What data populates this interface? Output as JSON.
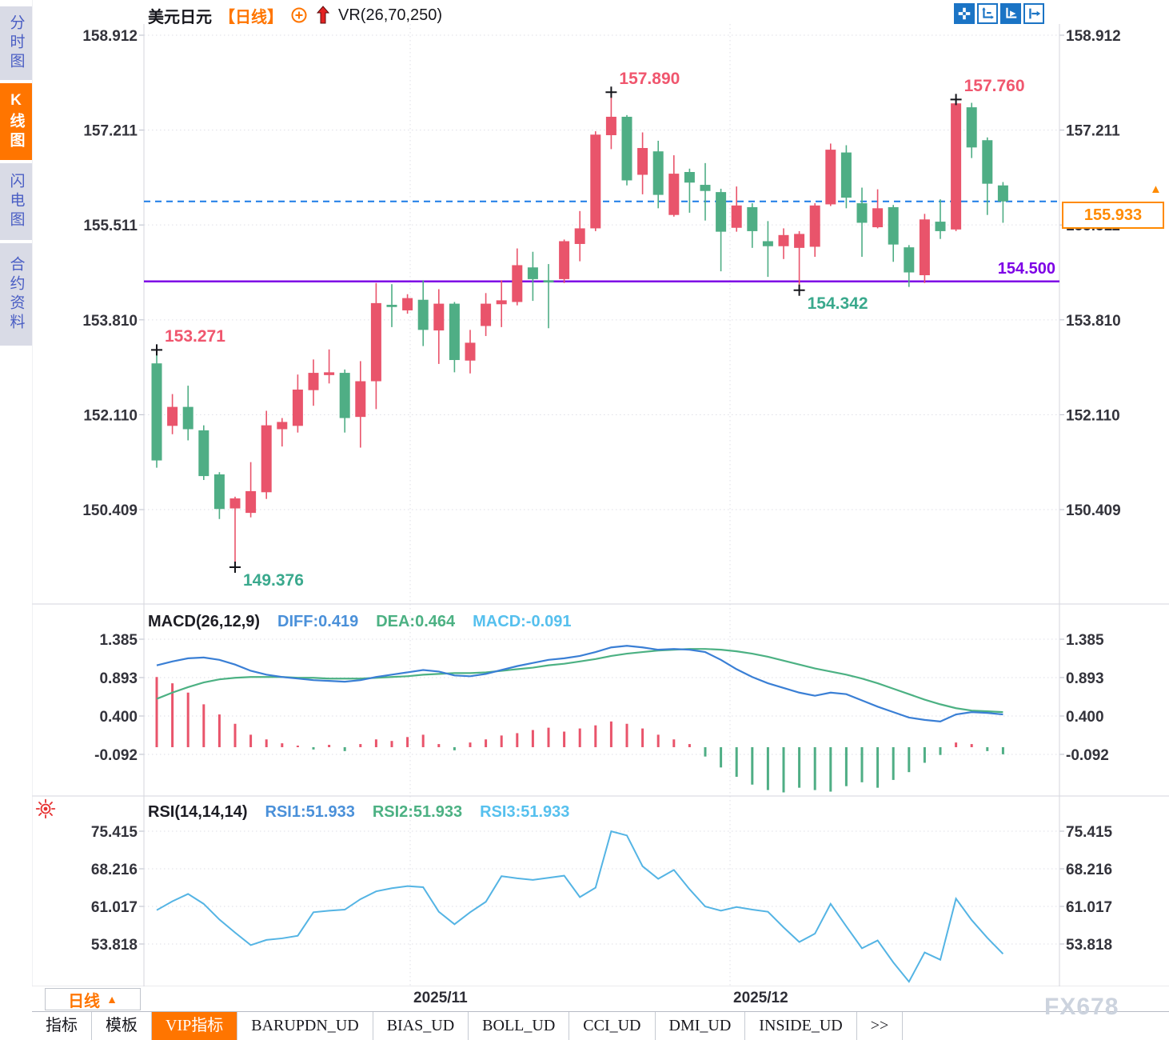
{
  "header": {
    "symbol": "美元日元",
    "period": "【日线】",
    "overlay_indicator": "VR(26,70,250)"
  },
  "sidebar": {
    "items": [
      {
        "label": "分时图",
        "key": "time-chart",
        "active": false
      },
      {
        "label": "K线图",
        "key": "kline-chart",
        "active": true
      },
      {
        "label": "闪电图",
        "key": "flash-chart",
        "active": false
      },
      {
        "label": "合约资料",
        "key": "contract-info",
        "active": false
      }
    ]
  },
  "toolbar": {
    "buttons": [
      {
        "icon": "move-crosshair-icon",
        "filled": true
      },
      {
        "icon": "axis-scale-icon",
        "filled": false
      },
      {
        "icon": "axis-auto-icon",
        "filled": true
      },
      {
        "icon": "pan-latest-icon",
        "filled": false
      }
    ]
  },
  "colors": {
    "up": "#e9546b",
    "down": "#4fae85",
    "accent_orange": "#ff7500",
    "toolbar_blue": "#1b74c5",
    "price_line_blue": "#1b7ce6",
    "support_purple": "#7d00e6",
    "rose_label": "#f0566e",
    "teal_label": "#3aa98d",
    "diff_blue": "#3a7fd5",
    "dea_green": "#4cb183",
    "rsi_line": "#54b4e4",
    "grid": "#dedee6",
    "axis_text": "#33333b",
    "marker_black": "#15151a"
  },
  "chart_data": [
    {
      "id": "price",
      "type": "candlestick",
      "y_ticks": [
        "158.912",
        "157.211",
        "155.511",
        "153.810",
        "152.110",
        "150.409"
      ],
      "ohlc": [
        [
          153.03,
          153.271,
          151.16,
          151.29
        ],
        [
          151.91,
          152.48,
          151.76,
          152.25
        ],
        [
          152.25,
          152.63,
          151.65,
          151.85
        ],
        [
          151.83,
          151.92,
          150.94,
          151.01
        ],
        [
          151.04,
          151.08,
          150.24,
          150.42
        ],
        [
          150.43,
          150.64,
          149.376,
          150.61
        ],
        [
          150.35,
          151.26,
          150.27,
          150.74
        ],
        [
          150.72,
          152.18,
          150.6,
          151.92
        ],
        [
          151.85,
          152.05,
          151.54,
          151.98
        ],
        [
          151.91,
          152.83,
          151.79,
          152.56
        ],
        [
          152.55,
          153.1,
          152.27,
          152.86
        ],
        [
          152.82,
          153.28,
          152.67,
          152.87
        ],
        [
          152.86,
          152.92,
          151.79,
          152.05
        ],
        [
          152.07,
          153.07,
          151.52,
          152.71
        ],
        [
          152.71,
          154.47,
          152.21,
          154.11
        ],
        [
          154.08,
          154.45,
          153.68,
          154.04
        ],
        [
          153.98,
          154.27,
          153.92,
          154.2
        ],
        [
          154.17,
          154.52,
          153.34,
          153.63
        ],
        [
          153.62,
          154.36,
          153.02,
          154.1
        ],
        [
          154.1,
          154.13,
          152.87,
          153.09
        ],
        [
          153.08,
          153.63,
          152.85,
          153.4
        ],
        [
          153.7,
          154.29,
          153.52,
          154.1
        ],
        [
          154.09,
          154.52,
          153.68,
          154.16
        ],
        [
          154.13,
          155.09,
          154.07,
          154.79
        ],
        [
          154.75,
          155.03,
          154.15,
          154.54
        ],
        [
          154.52,
          154.81,
          153.66,
          154.48
        ],
        [
          154.54,
          155.25,
          154.47,
          155.22
        ],
        [
          155.17,
          155.76,
          154.86,
          155.45
        ],
        [
          155.45,
          157.19,
          155.4,
          157.13
        ],
        [
          157.12,
          157.89,
          156.87,
          157.45
        ],
        [
          157.45,
          157.48,
          156.22,
          156.31
        ],
        [
          156.41,
          157.17,
          156.06,
          156.89
        ],
        [
          156.83,
          157.02,
          155.81,
          156.05
        ],
        [
          155.69,
          156.76,
          155.66,
          156.43
        ],
        [
          156.46,
          156.52,
          155.73,
          156.27
        ],
        [
          156.23,
          156.62,
          155.59,
          156.12
        ],
        [
          156.1,
          156.16,
          154.68,
          155.39
        ],
        [
          155.46,
          156.2,
          155.39,
          155.86
        ],
        [
          155.83,
          155.9,
          155.1,
          155.4
        ],
        [
          155.22,
          155.58,
          154.58,
          155.13
        ],
        [
          155.13,
          155.45,
          154.9,
          155.33
        ],
        [
          155.1,
          155.4,
          154.342,
          155.35
        ],
        [
          155.12,
          155.9,
          154.94,
          155.86
        ],
        [
          155.88,
          156.97,
          155.85,
          156.86
        ],
        [
          156.81,
          156.94,
          155.81,
          156.0
        ],
        [
          155.9,
          156.18,
          154.94,
          155.55
        ],
        [
          155.47,
          156.15,
          155.45,
          155.81
        ],
        [
          155.83,
          155.87,
          154.85,
          155.16
        ],
        [
          155.11,
          155.15,
          154.4,
          154.66
        ],
        [
          154.61,
          155.71,
          154.47,
          155.61
        ],
        [
          155.57,
          155.97,
          155.26,
          155.4
        ],
        [
          155.43,
          157.76,
          155.4,
          157.69
        ],
        [
          157.62,
          157.7,
          156.71,
          156.9
        ],
        [
          157.03,
          157.08,
          155.69,
          156.25
        ],
        [
          156.22,
          156.28,
          155.55,
          155.933
        ]
      ],
      "price_lines": [
        {
          "value": 155.933,
          "style": "dashed",
          "badge": "155.933"
        },
        {
          "value": 154.5,
          "style": "solid",
          "label": "154.500"
        }
      ],
      "annotations": [
        {
          "index": 0,
          "at": "high",
          "text": "153.271",
          "tone": "rose"
        },
        {
          "index": 5,
          "at": "low",
          "text": "149.376",
          "tone": "teal"
        },
        {
          "index": 29,
          "at": "high",
          "text": "157.890",
          "tone": "rose"
        },
        {
          "index": 41,
          "at": "low",
          "text": "154.342",
          "tone": "teal"
        },
        {
          "index": 51,
          "at": "high",
          "text": "157.760",
          "tone": "rose"
        }
      ]
    },
    {
      "id": "macd",
      "type": "macd",
      "label": "MACD(26,12,9)",
      "diff_label": "DIFF:0.419",
      "dea_label": "DEA:0.464",
      "macd_label": "MACD:-0.091",
      "y_ticks": [
        "1.385",
        "0.893",
        "0.400",
        "-0.092"
      ],
      "diff": [
        1.05,
        1.1,
        1.14,
        1.15,
        1.12,
        1.06,
        0.98,
        0.93,
        0.9,
        0.88,
        0.86,
        0.85,
        0.84,
        0.86,
        0.9,
        0.93,
        0.96,
        0.99,
        0.97,
        0.92,
        0.91,
        0.94,
        0.99,
        1.04,
        1.08,
        1.12,
        1.14,
        1.17,
        1.22,
        1.28,
        1.3,
        1.28,
        1.25,
        1.26,
        1.25,
        1.22,
        1.12,
        1.0,
        0.9,
        0.82,
        0.76,
        0.7,
        0.66,
        0.7,
        0.68,
        0.6,
        0.52,
        0.45,
        0.38,
        0.35,
        0.33,
        0.42,
        0.45,
        0.44,
        0.42
      ],
      "dea": [
        0.62,
        0.7,
        0.77,
        0.83,
        0.87,
        0.89,
        0.9,
        0.9,
        0.9,
        0.89,
        0.89,
        0.88,
        0.88,
        0.88,
        0.89,
        0.9,
        0.91,
        0.93,
        0.94,
        0.95,
        0.95,
        0.96,
        0.98,
        1.0,
        1.02,
        1.05,
        1.07,
        1.1,
        1.13,
        1.17,
        1.2,
        1.22,
        1.24,
        1.25,
        1.26,
        1.26,
        1.25,
        1.23,
        1.2,
        1.16,
        1.11,
        1.06,
        1.01,
        0.97,
        0.93,
        0.88,
        0.82,
        0.75,
        0.68,
        0.61,
        0.55,
        0.5,
        0.47,
        0.46,
        0.45
      ],
      "hist": [
        0.9,
        0.82,
        0.7,
        0.55,
        0.42,
        0.3,
        0.16,
        0.1,
        0.05,
        0.02,
        -0.03,
        0.03,
        -0.05,
        0.04,
        0.1,
        0.08,
        0.13,
        0.16,
        0.04,
        -0.04,
        0.06,
        0.1,
        0.15,
        0.18,
        0.22,
        0.25,
        0.2,
        0.24,
        0.28,
        0.33,
        0.3,
        0.24,
        0.16,
        0.1,
        0.04,
        -0.12,
        -0.26,
        -0.38,
        -0.48,
        -0.55,
        -0.58,
        -0.52,
        -0.55,
        -0.57,
        -0.5,
        -0.45,
        -0.52,
        -0.42,
        -0.32,
        -0.2,
        -0.1,
        0.06,
        0.04,
        -0.05,
        -0.091
      ]
    },
    {
      "id": "rsi",
      "type": "line",
      "label": "RSI(14,14,14)",
      "series_labels": [
        "RSI1:51.933",
        "RSI2:51.933",
        "RSI3:51.933"
      ],
      "y_ticks": [
        "75.415",
        "68.216",
        "61.017",
        "53.818"
      ],
      "values": [
        60.3,
        62.0,
        63.4,
        61.5,
        58.5,
        56.0,
        53.6,
        54.6,
        54.9,
        55.4,
        59.9,
        60.2,
        60.4,
        62.4,
        63.9,
        64.5,
        64.9,
        64.7,
        60.0,
        57.6,
        59.9,
        61.9,
        66.8,
        66.4,
        66.1,
        66.5,
        66.9,
        62.8,
        64.6,
        75.4,
        74.6,
        68.7,
        66.3,
        68.0,
        64.3,
        61.0,
        60.2,
        60.9,
        60.4,
        60.0,
        57.0,
        54.2,
        55.8,
        61.5,
        57.2,
        53.0,
        54.5,
        50.3,
        46.6,
        52.2,
        50.8,
        62.5,
        58.4,
        55.0,
        51.933
      ]
    }
  ],
  "x_axis": {
    "labels": [
      "2025/11",
      "2025/12"
    ]
  },
  "period_selector": {
    "label": "日线",
    "arrow": "▲"
  },
  "tabs": {
    "active": "VIP指标",
    "items": [
      {
        "label": "指标",
        "key": "indicators"
      },
      {
        "label": "模板",
        "key": "templates"
      },
      {
        "label": "VIP指标",
        "key": "vip-indicators"
      },
      {
        "label": "BARUPDN_UD",
        "key": "barupdn-ud"
      },
      {
        "label": "BIAS_UD",
        "key": "bias-ud"
      },
      {
        "label": "BOLL_UD",
        "key": "boll-ud"
      },
      {
        "label": "CCI_UD",
        "key": "cci-ud"
      },
      {
        "label": "DMI_UD",
        "key": "dmi-ud"
      },
      {
        "label": "INSIDE_UD",
        "key": "inside-ud"
      },
      {
        "label": "&gt;&gt;",
        "key": "more",
        "plain": ">>"
      }
    ]
  },
  "watermark": "FX678"
}
